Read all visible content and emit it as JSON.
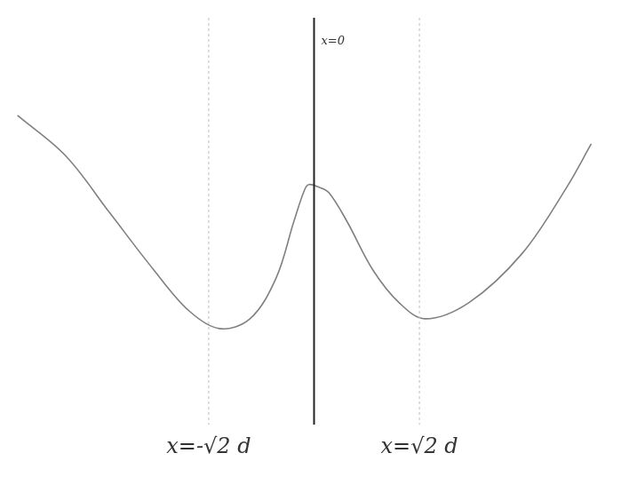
{
  "chart_data": {
    "type": "line",
    "x": [
      -3.98,
      -3.33,
      -2.74,
      -2.15,
      -1.68,
      -1.27,
      -0.86,
      -0.51,
      -0.27,
      -0.13,
      -0.07,
      0.06,
      0.2,
      0.44,
      0.79,
      1.14,
      1.49,
      2.08,
      2.79,
      3.38,
      3.72
    ],
    "values": [
      2.8,
      2.3,
      1.6,
      0.9,
      0.4,
      0.18,
      0.3,
      0.8,
      1.5,
      1.88,
      1.95,
      1.92,
      1.85,
      1.5,
      0.9,
      0.5,
      0.3,
      0.5,
      1.1,
      1.9,
      2.45
    ],
    "color": "#808080",
    "xlim": [
      -4,
      4
    ],
    "xticks": [
      -4,
      -2,
      0,
      2,
      4
    ],
    "ylim": [
      -1,
      4
    ],
    "yticks": [
      -1,
      0,
      1,
      2,
      3,
      4
    ],
    "grid": false,
    "tick_labels": false,
    "annotations": [
      {
        "x": 0,
        "text": "x=0",
        "line_style": "solid"
      },
      {
        "x": -1.414,
        "text": "x=-√2 d",
        "line_style": "dotted"
      },
      {
        "x": 1.414,
        "text": "x=√2 d",
        "line_style": "dotted"
      }
    ]
  }
}
